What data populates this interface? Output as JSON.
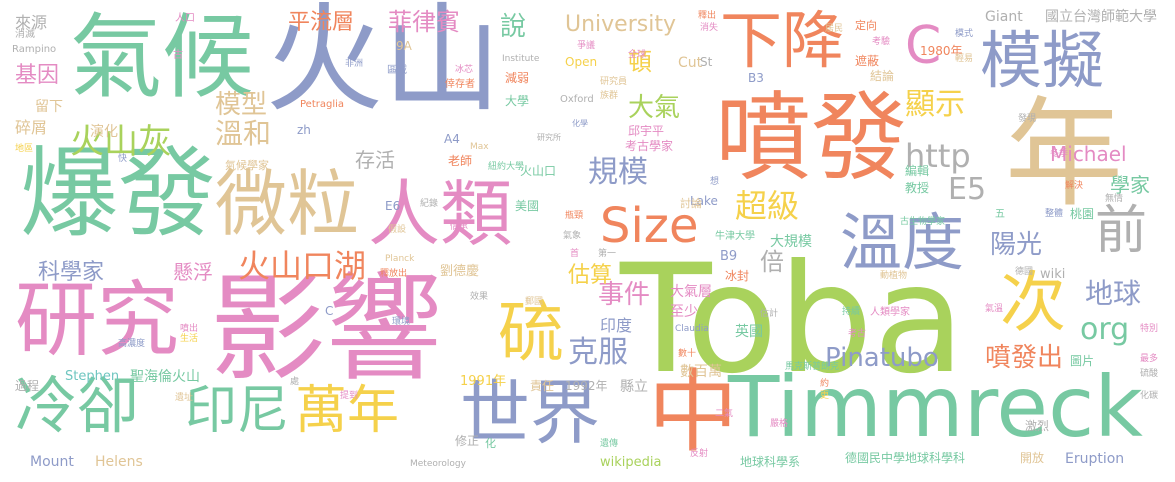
{
  "palette": {
    "green": "#77c9a2",
    "blue": "#8e9bc8",
    "orange": "#f0855d",
    "tan": "#e0c596",
    "pink": "#e48bc3",
    "lime": "#a9d25c",
    "yellow": "#f5d14b",
    "gray": "#b0b0b0",
    "teal": "#6fc6c0"
  },
  "words": [
    {
      "text": "Toba",
      "color": "lime"
    },
    {
      "text": "火山",
      "color": "blue"
    },
    {
      "text": "影響",
      "color": "pink"
    },
    {
      "text": "氣候",
      "color": "green"
    },
    {
      "text": "爆發",
      "color": "green"
    },
    {
      "text": "噴發",
      "color": "orange"
    },
    {
      "text": "年",
      "color": "tan"
    },
    {
      "text": "Timmreck",
      "color": "green"
    },
    {
      "text": "研究",
      "color": "pink"
    },
    {
      "text": "微粒",
      "color": "tan"
    },
    {
      "text": "人類",
      "color": "pink"
    },
    {
      "text": "模擬",
      "color": "blue"
    },
    {
      "text": "下降",
      "color": "orange"
    },
    {
      "text": "世界",
      "color": "blue"
    },
    {
      "text": "中",
      "color": "orange"
    },
    {
      "text": "冷卻",
      "color": "green"
    },
    {
      "text": "溫度",
      "color": "blue"
    },
    {
      "text": "C",
      "color": "pink"
    },
    {
      "text": "次",
      "color": "yellow"
    },
    {
      "text": "印尼",
      "color": "green"
    },
    {
      "text": "萬年",
      "color": "yellow"
    },
    {
      "text": "硫",
      "color": "yellow"
    },
    {
      "text": "Size",
      "color": "orange"
    },
    {
      "text": "前",
      "color": "gray"
    },
    {
      "text": "火山灰",
      "color": "lime"
    },
    {
      "text": "火山口湖",
      "color": "orange"
    },
    {
      "text": "超級",
      "color": "yellow"
    },
    {
      "text": "規模",
      "color": "blue"
    },
    {
      "text": "溫和",
      "color": "tan"
    },
    {
      "text": "模型",
      "color": "tan"
    },
    {
      "text": "大氣",
      "color": "lime"
    },
    {
      "text": "顯示",
      "color": "yellow"
    },
    {
      "text": "http",
      "color": "gray"
    },
    {
      "text": "E5",
      "color": "gray"
    },
    {
      "text": "陽光",
      "color": "blue"
    },
    {
      "text": "地球",
      "color": "blue"
    },
    {
      "text": "org",
      "color": "green"
    },
    {
      "text": "Pinatubo",
      "color": "blue"
    },
    {
      "text": "噴發出",
      "color": "orange"
    },
    {
      "text": "事件",
      "color": "pink"
    },
    {
      "text": "克服",
      "color": "blue"
    },
    {
      "text": "估算",
      "color": "yellow"
    },
    {
      "text": "倍",
      "color": "gray"
    },
    {
      "text": "科學家",
      "color": "blue"
    },
    {
      "text": "懸浮",
      "color": "pink"
    },
    {
      "text": "菲律賓",
      "color": "pink"
    },
    {
      "text": "說",
      "color": "green"
    },
    {
      "text": "University",
      "color": "tan"
    },
    {
      "text": "平流層",
      "color": "orange"
    },
    {
      "text": "Michael",
      "color": "pink"
    },
    {
      "text": "學家",
      "color": "green"
    },
    {
      "text": "存活",
      "color": "gray"
    },
    {
      "text": "頓",
      "color": "yellow"
    },
    {
      "text": "國立台灣師範大學",
      "color": "gray"
    },
    {
      "text": "Giant",
      "color": "gray"
    },
    {
      "text": "來源",
      "color": "gray"
    },
    {
      "text": "基因",
      "color": "pink"
    },
    {
      "text": "碎屑",
      "color": "tan"
    },
    {
      "text": "留下",
      "color": "tan"
    },
    {
      "text": "演化",
      "color": "tan"
    },
    {
      "text": "Mount",
      "color": "blue"
    },
    {
      "text": "Helens",
      "color": "tan"
    },
    {
      "text": "聖海倫火山",
      "color": "green"
    },
    {
      "text": "Stephen",
      "color": "teal"
    },
    {
      "text": "1991年",
      "color": "yellow"
    },
    {
      "text": "1992年",
      "color": "gray"
    },
    {
      "text": "責任",
      "color": "tan"
    },
    {
      "text": "縣立",
      "color": "gray"
    },
    {
      "text": "數百萬",
      "color": "tan"
    },
    {
      "text": "印度",
      "color": "blue"
    },
    {
      "text": "英國",
      "color": "green"
    },
    {
      "text": "大氣層",
      "color": "pink"
    },
    {
      "text": "至少",
      "color": "pink"
    },
    {
      "text": "Cut",
      "color": "tan"
    },
    {
      "text": "Lake",
      "color": "blue"
    },
    {
      "text": "B9",
      "color": "blue"
    },
    {
      "text": "冰封",
      "color": "orange"
    },
    {
      "text": "大規模",
      "color": "green"
    },
    {
      "text": "劉德慶",
      "color": "tan"
    },
    {
      "text": "wiki",
      "color": "gray"
    },
    {
      "text": "Eruption",
      "color": "blue"
    },
    {
      "text": "激烈",
      "color": "gray"
    },
    {
      "text": "開放",
      "color": "tan"
    },
    {
      "text": "德國民中學地球科學科",
      "color": "green"
    },
    {
      "text": "地球科學系",
      "color": "green"
    },
    {
      "text": "wikipedia",
      "color": "lime"
    },
    {
      "text": "修正",
      "color": "gray"
    },
    {
      "text": "圖片",
      "color": "green"
    },
    {
      "text": "桃園",
      "color": "green"
    },
    {
      "text": "教授",
      "color": "green"
    },
    {
      "text": "編輯",
      "color": "green"
    },
    {
      "text": "遮蔽",
      "color": "orange"
    },
    {
      "text": "結論",
      "color": "tan"
    },
    {
      "text": "1980年",
      "color": "orange"
    },
    {
      "text": "定向",
      "color": "orange"
    },
    {
      "text": "B3",
      "color": "blue"
    },
    {
      "text": "St",
      "color": "gray"
    },
    {
      "text": "Open",
      "color": "yellow"
    },
    {
      "text": "Oxford",
      "color": "gray"
    },
    {
      "text": "減弱",
      "color": "orange"
    },
    {
      "text": "大學",
      "color": "green"
    },
    {
      "text": "邱宇平",
      "color": "pink"
    },
    {
      "text": "考古學家",
      "color": "pink"
    },
    {
      "text": "老師",
      "color": "orange"
    },
    {
      "text": "火山口",
      "color": "green"
    },
    {
      "text": "美國",
      "color": "green"
    },
    {
      "text": "討論",
      "color": "tan"
    },
    {
      "text": "E6",
      "color": "blue"
    },
    {
      "text": "zh",
      "color": "blue"
    },
    {
      "text": "A4",
      "color": "blue"
    },
    {
      "text": "9A",
      "color": "tan"
    },
    {
      "text": "區域",
      "color": "blue"
    },
    {
      "text": "氣候學家",
      "color": "tan"
    },
    {
      "text": "Rampino",
      "color": "gray"
    },
    {
      "text": "消滅",
      "color": "gray"
    },
    {
      "text": "人口",
      "color": "pink"
    },
    {
      "text": "Petraglia",
      "color": "orange"
    },
    {
      "text": "Planck",
      "color": "tan"
    },
    {
      "text": "Claudia",
      "color": "blue"
    },
    {
      "text": "Max",
      "color": "tan"
    },
    {
      "text": "Institute",
      "color": "gray"
    },
    {
      "text": "Meteorology",
      "color": "gray"
    },
    {
      "text": "人類學家",
      "color": "pink"
    },
    {
      "text": "古生物學家",
      "color": "green"
    },
    {
      "text": "馬克斯普朗克",
      "color": "green"
    },
    {
      "text": "牛津大學",
      "color": "green"
    },
    {
      "text": "紐約大學",
      "color": "green"
    },
    {
      "text": "研究所",
      "color": "gray"
    },
    {
      "text": "研究員",
      "color": "tan"
    },
    {
      "text": "C",
      "color": "blue"
    },
    {
      "text": "五",
      "color": "green"
    },
    {
      "text": "德國",
      "color": "gray"
    },
    {
      "text": "冬季",
      "color": "pink"
    },
    {
      "text": "解決",
      "color": "orange"
    },
    {
      "text": "特別",
      "color": "pink"
    },
    {
      "text": "最多",
      "color": "pink"
    },
    {
      "text": "硫酸",
      "color": "gray"
    },
    {
      "text": "化碳",
      "color": "gray"
    },
    {
      "text": "遺傳",
      "color": "green"
    },
    {
      "text": "反射",
      "color": "pink"
    },
    {
      "text": "過程",
      "color": "gray"
    },
    {
      "text": "高濃度",
      "color": "blue"
    },
    {
      "text": "環境",
      "color": "blue"
    },
    {
      "text": "效果",
      "color": "gray"
    },
    {
      "text": "噴出",
      "color": "pink"
    },
    {
      "text": "生活",
      "color": "yellow"
    },
    {
      "text": "遺址",
      "color": "tan"
    },
    {
      "text": "提到",
      "color": "pink"
    },
    {
      "text": "假設",
      "color": "tan"
    },
    {
      "text": "紀錄",
      "color": "gray"
    },
    {
      "text": "發現",
      "color": "gray"
    },
    {
      "text": "居民",
      "color": "tan"
    },
    {
      "text": "全球",
      "color": "pink"
    },
    {
      "text": "爭議",
      "color": "pink"
    },
    {
      "text": "倖存者",
      "color": "orange"
    },
    {
      "text": "冰芯",
      "color": "pink"
    },
    {
      "text": "非洲",
      "color": "blue"
    },
    {
      "text": "古",
      "color": "pink"
    },
    {
      "text": "地區",
      "color": "yellow"
    },
    {
      "text": "快",
      "color": "blue"
    },
    {
      "text": "化學",
      "color": "blue"
    },
    {
      "text": "族群",
      "color": "tan"
    },
    {
      "text": "消失",
      "color": "pink"
    },
    {
      "text": "釋出",
      "color": "orange"
    },
    {
      "text": "考驗",
      "color": "pink"
    },
    {
      "text": "模式",
      "color": "blue"
    },
    {
      "text": "輕易",
      "color": "tan"
    },
    {
      "text": "整體",
      "color": "blue"
    },
    {
      "text": "無情",
      "color": "gray"
    },
    {
      "text": "氣溫",
      "color": "pink"
    },
    {
      "text": "持續",
      "color": "green"
    },
    {
      "text": "考古",
      "color": "pink"
    },
    {
      "text": "估計",
      "color": "gray"
    },
    {
      "text": "動植物",
      "color": "tan"
    },
    {
      "text": "數十",
      "color": "orange"
    },
    {
      "text": "釋放出",
      "color": "orange"
    },
    {
      "text": "第一",
      "color": "gray"
    },
    {
      "text": "首",
      "color": "pink"
    },
    {
      "text": "瓶頸",
      "color": "orange"
    },
    {
      "text": "氣象",
      "color": "gray"
    },
    {
      "text": "情承",
      "color": "pink"
    },
    {
      "text": "二氣",
      "color": "pink"
    },
    {
      "text": "郵國",
      "color": "tan"
    },
    {
      "text": "想",
      "color": "blue"
    },
    {
      "text": "約",
      "color": "orange"
    },
    {
      "text": "更",
      "color": "yellow"
    },
    {
      "text": "化",
      "color": "green"
    },
    {
      "text": "處",
      "color": "gray"
    },
    {
      "text": "嚴格",
      "color": "pink"
    }
  ]
}
